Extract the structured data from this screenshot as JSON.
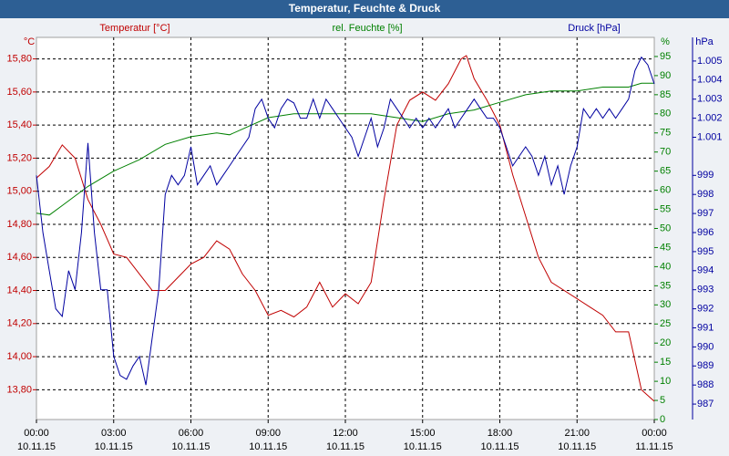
{
  "chart_data": {
    "type": "line",
    "title": "Temperatur, Feuchte & Druck",
    "ylabel": "°C",
    "y2label": "%",
    "y3label": "hPa",
    "xlim": [
      0,
      24
    ],
    "xticks": [
      {
        "value": 0,
        "label": "00:00"
      },
      {
        "value": 3,
        "label": "03:00"
      },
      {
        "value": 6,
        "label": "06:00"
      },
      {
        "value": 9,
        "label": "09:00"
      },
      {
        "value": 12,
        "label": "12:00"
      },
      {
        "value": 15,
        "label": "15:00"
      },
      {
        "value": 18,
        "label": "18:00"
      },
      {
        "value": 21,
        "label": "21:00"
      },
      {
        "value": 24,
        "label": "00:00"
      }
    ],
    "xtick_dates": [
      "10.11.15",
      "10.11.15",
      "10.11.15",
      "10.11.15",
      "10.11.15",
      "10.11.15",
      "10.11.15",
      "10.11.15",
      "11.11.15"
    ],
    "ylim": [
      13.62,
      15.93
    ],
    "yticks": [
      {
        "value": 13.8,
        "label": "13,80"
      },
      {
        "value": 14.0,
        "label": "14,00"
      },
      {
        "value": 14.2,
        "label": "14,20"
      },
      {
        "value": 14.4,
        "label": "14,40"
      },
      {
        "value": 14.6,
        "label": "14,60"
      },
      {
        "value": 14.8,
        "label": "14,80"
      },
      {
        "value": 15.0,
        "label": "15,00"
      },
      {
        "value": 15.2,
        "label": "15,20"
      },
      {
        "value": 15.4,
        "label": "15,40"
      },
      {
        "value": 15.6,
        "label": "15,60"
      },
      {
        "value": 15.8,
        "label": "15,80"
      }
    ],
    "y2lim": [
      0,
      100
    ],
    "y2ticks": [
      0,
      5,
      10,
      15,
      20,
      25,
      30,
      35,
      40,
      45,
      50,
      55,
      60,
      65,
      70,
      75,
      80,
      85,
      90,
      95
    ],
    "y3lim": [
      986.19,
      1006.24
    ],
    "y3ticks": [
      987,
      988,
      989,
      990,
      991,
      992,
      993,
      994,
      995,
      996,
      997,
      998,
      999,
      {
        "value": 1001,
        "label": "1.001"
      },
      {
        "value": 1002,
        "label": "1.002"
      },
      {
        "value": 1003,
        "label": "1.003"
      },
      {
        "value": 1004,
        "label": "1.004"
      },
      {
        "value": 1005,
        "label": "1.005"
      }
    ],
    "grid": true,
    "series": [
      {
        "name": "Temperatur [°C]",
        "color": "#c00000",
        "axis": "y",
        "x": [
          0,
          0.5,
          1,
          1.5,
          2,
          2.5,
          3,
          3.5,
          4,
          4.5,
          5,
          5.5,
          6,
          6.5,
          7,
          7.5,
          8,
          8.5,
          9,
          9.5,
          10,
          10.5,
          11,
          11.5,
          12,
          12.5,
          13,
          13.5,
          14,
          14.5,
          15,
          15.5,
          16,
          16.5,
          16.7,
          17,
          17.5,
          18,
          18.5,
          19,
          19.5,
          20,
          20.5,
          21,
          21.5,
          22,
          22.5,
          23,
          23.5,
          24
        ],
        "values": [
          15.08,
          15.15,
          15.28,
          15.2,
          14.95,
          14.8,
          14.62,
          14.6,
          14.5,
          14.4,
          14.4,
          14.48,
          14.56,
          14.6,
          14.7,
          14.65,
          14.5,
          14.4,
          14.25,
          14.28,
          14.24,
          14.3,
          14.45,
          14.3,
          14.38,
          14.32,
          14.45,
          14.95,
          15.4,
          15.55,
          15.6,
          15.55,
          15.65,
          15.8,
          15.82,
          15.68,
          15.55,
          15.4,
          15.1,
          14.85,
          14.6,
          14.45,
          14.4,
          14.35,
          14.3,
          14.25,
          14.15,
          14.15,
          13.8,
          13.73
        ]
      },
      {
        "name": "rel. Feuchte [%]",
        "color": "#008000",
        "axis": "y2",
        "x": [
          0,
          0.5,
          1,
          2,
          3,
          4,
          5,
          6,
          7,
          7.5,
          8,
          9,
          10,
          11,
          12,
          13,
          14,
          15,
          16,
          17,
          18,
          19,
          20,
          21,
          22,
          23,
          23.5,
          24
        ],
        "values": [
          54,
          53.5,
          56,
          61,
          65,
          68,
          72,
          74,
          75,
          74.5,
          76,
          79,
          80,
          80,
          80,
          80,
          79,
          78,
          80,
          81,
          83,
          85,
          86,
          86,
          87,
          87,
          88,
          88
        ]
      },
      {
        "name": "Druck [hPa]",
        "color": "#0000a0",
        "axis": "y3",
        "x": [
          0,
          0.25,
          0.5,
          0.75,
          1,
          1.25,
          1.5,
          1.75,
          2,
          2.25,
          2.5,
          2.75,
          3,
          3.25,
          3.5,
          3.75,
          4,
          4.25,
          4.5,
          4.75,
          5,
          5.25,
          5.5,
          5.75,
          6,
          6.25,
          6.5,
          6.75,
          7,
          7.25,
          7.5,
          7.75,
          8,
          8.25,
          8.5,
          8.75,
          9,
          9.25,
          9.5,
          9.75,
          10,
          10.25,
          10.5,
          10.75,
          11,
          11.25,
          11.5,
          11.75,
          12,
          12.25,
          12.5,
          12.75,
          13,
          13.25,
          13.5,
          13.75,
          14,
          14.25,
          14.5,
          14.75,
          15,
          15.25,
          15.5,
          15.75,
          16,
          16.25,
          16.5,
          16.75,
          17,
          17.25,
          17.5,
          17.75,
          18,
          18.25,
          18.5,
          18.75,
          19,
          19.25,
          19.5,
          19.75,
          20,
          20.25,
          20.5,
          20.75,
          21,
          21.25,
          21.5,
          21.75,
          22,
          22.25,
          22.5,
          22.75,
          23,
          23.25,
          23.5,
          23.75,
          24
        ],
        "values": [
          999,
          996,
          994,
          992,
          991.6,
          994,
          993,
          996,
          1000.7,
          996,
          993,
          993,
          989.5,
          988.5,
          988.3,
          989,
          989.5,
          988,
          990.5,
          993,
          998,
          999,
          998.5,
          999,
          1000.5,
          998.5,
          999,
          999.5,
          998.5,
          999,
          999.5,
          1000,
          1000.5,
          1001,
          1002.5,
          1003,
          1002,
          1001.5,
          1002.5,
          1003,
          1002.8,
          1002,
          1002,
          1003,
          1002,
          1003,
          1002.5,
          1002,
          1001.5,
          1001,
          1000,
          1001,
          1002,
          1000.5,
          1001.5,
          1003,
          1002.5,
          1002,
          1001.5,
          1002,
          1001.5,
          1002,
          1001.5,
          1002,
          1002.5,
          1001.5,
          1002,
          1002.5,
          1003,
          1002.5,
          1002,
          1002,
          1001.5,
          1000.5,
          999.5,
          1000,
          1000.5,
          1000,
          999,
          1000,
          998.5,
          999.5,
          998,
          999.5,
          1000.5,
          1002.5,
          1002,
          1002.5,
          1002,
          1002.5,
          1002,
          1002.5,
          1003,
          1004.5,
          1005.2,
          1004.8,
          1003.8
        ]
      }
    ]
  }
}
